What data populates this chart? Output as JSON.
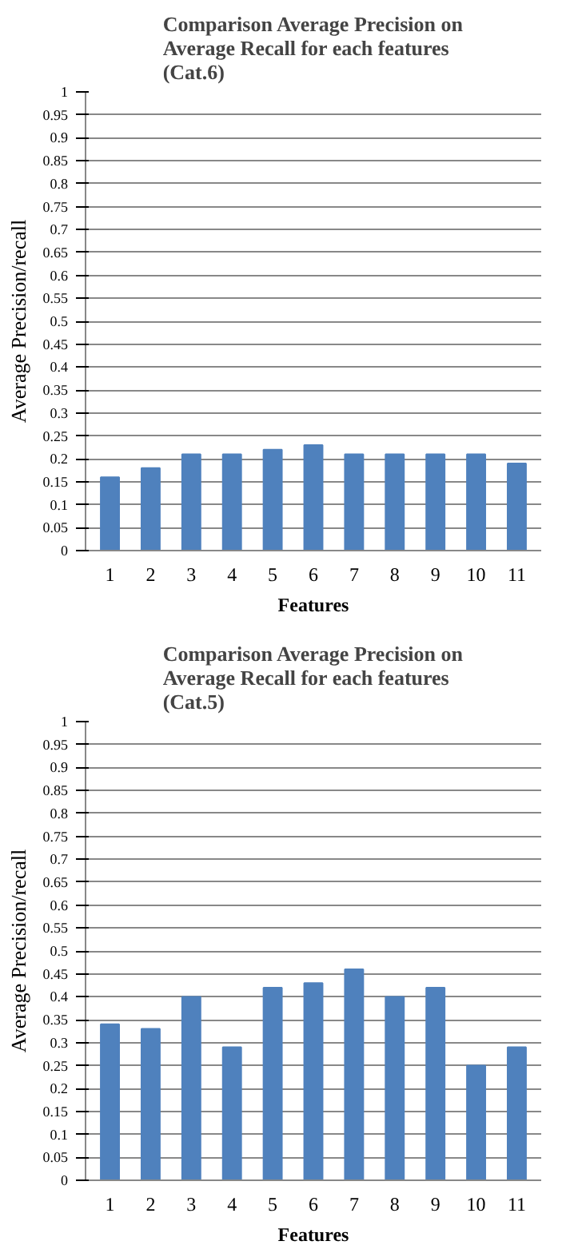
{
  "chart_data": [
    {
      "type": "bar",
      "title": "Comparison Average Precision on Average Recall   for each features (Cat.6)",
      "xlabel": "Features",
      "ylabel": "Average Precision/recall",
      "categories": [
        "1",
        "2",
        "3",
        "4",
        "5",
        "6",
        "7",
        "8",
        "9",
        "10",
        "11"
      ],
      "series": [
        {
          "color": "#4f81bd",
          "values": [
            0.16,
            0.18,
            0.21,
            0.21,
            0.22,
            0.23,
            0.21,
            0.21,
            0.21,
            0.21,
            0.19
          ]
        }
      ],
      "ylim": [
        0,
        1
      ],
      "yticks": [
        0,
        0.05,
        0.1,
        0.15,
        0.2,
        0.25,
        0.3,
        0.35,
        0.4,
        0.45,
        0.5,
        0.55,
        0.6,
        0.65,
        0.7,
        0.75,
        0.8,
        0.85,
        0.9,
        0.95,
        1
      ],
      "grid": "y"
    },
    {
      "type": "bar",
      "title": "Comparison Average Precision on Average Recall  for each features (Cat.5)",
      "xlabel": "Features",
      "ylabel": "Average Precision/recall",
      "categories": [
        "1",
        "2",
        "3",
        "4",
        "5",
        "6",
        "7",
        "8",
        "9",
        "10",
        "11"
      ],
      "series": [
        {
          "color": "#4f81bd",
          "values": [
            0.34,
            0.33,
            0.4,
            0.29,
            0.42,
            0.43,
            0.46,
            0.4,
            0.42,
            0.25,
            0.29
          ]
        }
      ],
      "ylim": [
        0,
        1
      ],
      "yticks": [
        0,
        0.05,
        0.1,
        0.15,
        0.2,
        0.25,
        0.3,
        0.35,
        0.4,
        0.45,
        0.5,
        0.55,
        0.6,
        0.65,
        0.7,
        0.75,
        0.8,
        0.85,
        0.9,
        0.95,
        1
      ],
      "grid": "y"
    }
  ]
}
